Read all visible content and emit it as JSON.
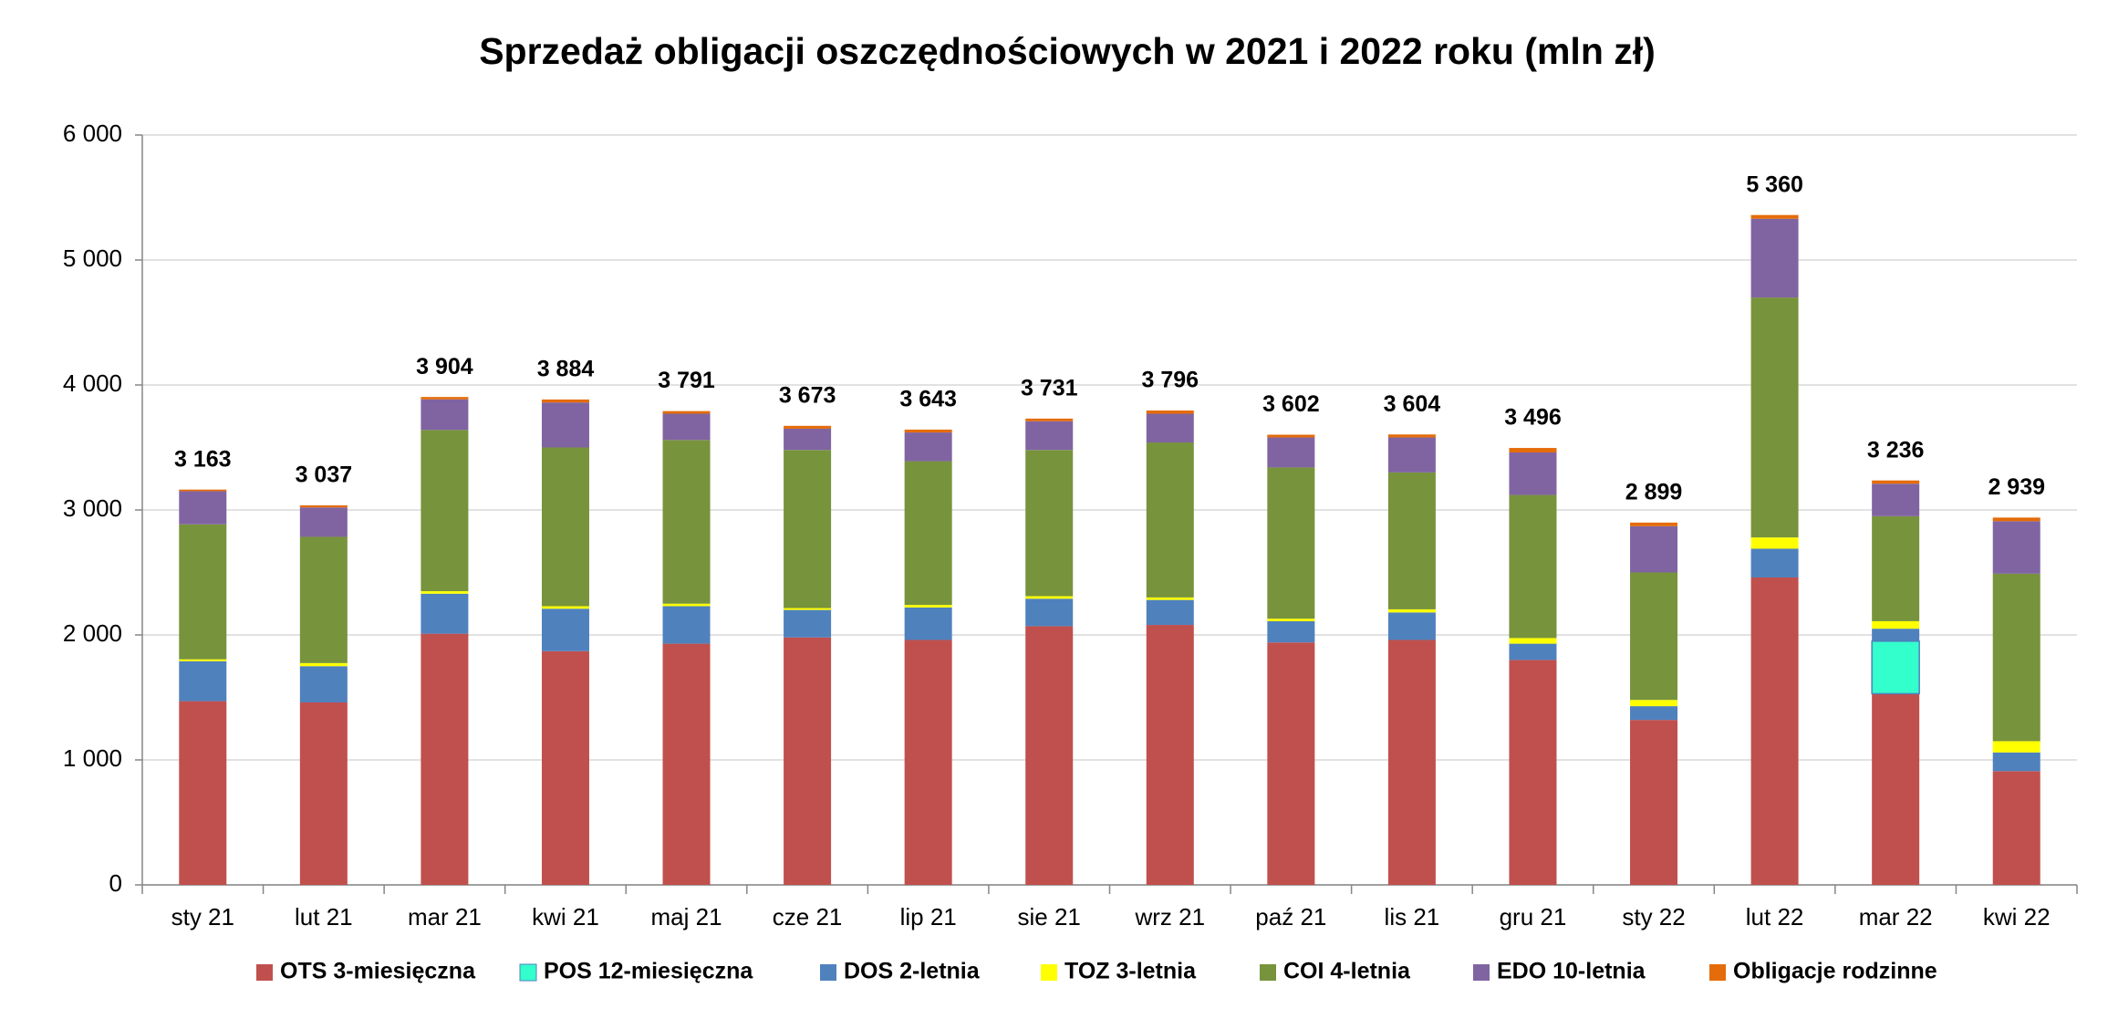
{
  "chart_data": {
    "type": "stacked_bar",
    "title": "Sprzedaż obligacji oszczędnościowych w 2021 i 2022 roku (mln zł)",
    "categories": [
      "sty 21",
      "lut 21",
      "mar 21",
      "kwi 21",
      "maj 21",
      "cze 21",
      "lip 21",
      "sie 21",
      "wrz 21",
      "paź 21",
      "lis 21",
      "gru 21",
      "sty 22",
      "lut 22",
      "mar 22",
      "kwi 22"
    ],
    "series": [
      {
        "name": "OTS 3-miesięczna",
        "color": "#c0504d",
        "values": [
          1470,
          1460,
          2010,
          1870,
          1930,
          1980,
          1960,
          2070,
          2080,
          1940,
          1960,
          1800,
          1320,
          2460,
          1530,
          910
        ]
      },
      {
        "name": "POS 12-miesięczna",
        "color": "#33ffcc",
        "values": [
          0,
          0,
          0,
          0,
          0,
          0,
          0,
          0,
          0,
          0,
          0,
          0,
          0,
          0,
          420,
          0
        ]
      },
      {
        "name": "DOS 2-letnia",
        "color": "#4f81bd",
        "values": [
          320,
          290,
          320,
          340,
          300,
          220,
          260,
          220,
          200,
          170,
          220,
          130,
          110,
          230,
          100,
          150
        ]
      },
      {
        "name": "TOZ 3-letnia",
        "color": "#ffff00",
        "values": [
          15,
          25,
          20,
          20,
          20,
          15,
          20,
          20,
          20,
          20,
          25,
          45,
          50,
          90,
          60,
          90
        ]
      },
      {
        "name": "COI 4-letnia",
        "color": "#77933c",
        "values": [
          1080,
          1010,
          1290,
          1270,
          1310,
          1265,
          1150,
          1170,
          1240,
          1210,
          1095,
          1145,
          1020,
          1920,
          840,
          1340
        ]
      },
      {
        "name": "EDO 10-letnia",
        "color": "#8064a2",
        "values": [
          265,
          235,
          245,
          360,
          210,
          170,
          230,
          230,
          230,
          240,
          280,
          340,
          370,
          630,
          260,
          420
        ]
      },
      {
        "name": "Obligacje rodzinne",
        "color": "#e46c0a",
        "values": [
          13,
          17,
          19,
          24,
          21,
          23,
          23,
          21,
          26,
          22,
          24,
          36,
          29,
          30,
          26,
          29
        ]
      }
    ],
    "totals": {
      "values": [
        3163,
        3037,
        3904,
        3884,
        3791,
        3673,
        3643,
        3731,
        3796,
        3602,
        3604,
        3496,
        2899,
        5360,
        3236,
        2939
      ],
      "value_labels": [
        "3 163",
        "3 037",
        "3 904",
        "3 884",
        "3 791",
        "3 673",
        "3 643",
        "3 731",
        "3 796",
        "3 602",
        "3 604",
        "3 496",
        "2 899",
        "5 360",
        "3 236",
        "2 939"
      ]
    },
    "ylim": [
      0,
      6000
    ],
    "yticks": [
      0,
      {
        "value": 1000,
        "label": "1 000"
      },
      {
        "value": 2000,
        "label": "2 000"
      },
      {
        "value": 3000,
        "label": "3 000"
      },
      {
        "value": 4000,
        "label": "4 000"
      },
      {
        "value": 5000,
        "label": "5 000"
      },
      {
        "value": 6000,
        "label": "6 000"
      }
    ],
    "grid": true,
    "legend": "bottom"
  }
}
